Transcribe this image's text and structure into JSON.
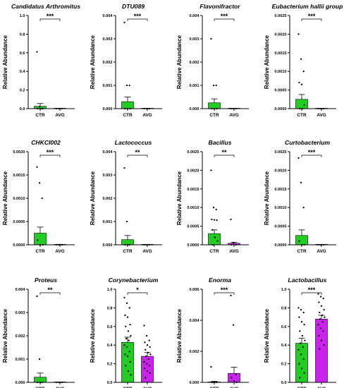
{
  "colors": {
    "ctr": "#22cc22",
    "avg": "#cc22ee",
    "axis": "#000000",
    "dot": "#000000"
  },
  "chart_data": [
    {
      "type": "bar",
      "title": "Candidatus Arthromitus",
      "ylabel": "Relative Abundance",
      "categories": [
        "CTR",
        "AVG"
      ],
      "ylim": [
        0,
        1.0
      ],
      "yticks": [
        "0.0",
        "0.2",
        "0.4",
        "0.6",
        "0.8",
        "1.0"
      ],
      "ytick_values": [
        0,
        0.2,
        0.4,
        0.6,
        0.8,
        1.0
      ],
      "means": [
        0.025,
        0.0
      ],
      "errors": [
        0.03,
        0.002
      ],
      "points": [
        [
          0.61,
          0.02,
          0.0,
          0.0,
          0.0,
          0.0
        ],
        [
          0.0,
          0.0,
          0.0
        ]
      ],
      "significance": "***"
    },
    {
      "type": "bar",
      "title": "DTU089",
      "ylabel": "Relative Abundance",
      "categories": [
        "CTR",
        "AVG"
      ],
      "ylim": [
        0,
        0.004
      ],
      "yticks": [
        "0.000",
        "0.001",
        "0.002",
        "0.003",
        "0.004"
      ],
      "ytick_values": [
        0,
        0.001,
        0.002,
        0.003,
        0.004
      ],
      "means": [
        0.0003,
        0.0
      ],
      "errors": [
        0.0002,
        1e-05
      ],
      "points": [
        [
          0.0037,
          0.001,
          0.001,
          0.0,
          0.0,
          0.0
        ],
        [
          0.0,
          0.0,
          0.0
        ]
      ],
      "significance": "***"
    },
    {
      "type": "bar",
      "title": "Flavonifractor",
      "ylabel": "Relative Abundance",
      "categories": [
        "CTR",
        "AVG"
      ],
      "ylim": [
        0,
        0.004
      ],
      "yticks": [
        "0.000",
        "0.001",
        "0.002",
        "0.003",
        "0.004"
      ],
      "ytick_values": [
        0,
        0.001,
        0.002,
        0.003,
        0.004
      ],
      "means": [
        0.00025,
        0.0
      ],
      "errors": [
        0.00017,
        1e-05
      ],
      "points": [
        [
          0.003,
          0.001,
          0.001,
          0.0,
          0.0,
          0.0
        ],
        [
          0.0,
          0.0,
          0.0
        ]
      ],
      "significance": "***"
    },
    {
      "type": "bar",
      "title": "Eubacterium hallii group",
      "ylabel": "Relative Abundance",
      "categories": [
        "CTR",
        "AVG"
      ],
      "ylim": [
        0,
        0.0025
      ],
      "yticks": [
        "0.0000",
        "0.0005",
        "0.0010",
        "0.0015",
        "0.0020",
        "0.0025"
      ],
      "ytick_values": [
        0,
        0.0005,
        0.001,
        0.0015,
        0.002,
        0.0025
      ],
      "means": [
        0.00025,
        0.0
      ],
      "errors": [
        0.00013,
        1e-05
      ],
      "points": [
        [
          0.002,
          0.00133,
          0.001,
          0.0007,
          0.00065,
          0.0001,
          0.0,
          0.0
        ],
        [
          0.0,
          0.0,
          0.0
        ]
      ],
      "significance": "***"
    },
    {
      "type": "bar",
      "title": "CHKCI002",
      "ylabel": "Relative Abundance",
      "categories": [
        "CTR",
        "AVG"
      ],
      "ylim": [
        0,
        0.002
      ],
      "yticks": [
        "0.0000",
        "0.0005",
        "0.0010",
        "0.0015",
        "0.0020"
      ],
      "ytick_values": [
        0,
        0.0005,
        0.001,
        0.0015,
        0.002
      ],
      "means": [
        0.00025,
        0.0
      ],
      "errors": [
        0.00013,
        1e-05
      ],
      "points": [
        [
          0.00167,
          0.00133,
          0.001,
          0.0001,
          0.0,
          0.0
        ],
        [
          0.0,
          0.0,
          0.0
        ]
      ],
      "significance": "***"
    },
    {
      "type": "bar",
      "title": "Lactococcus",
      "ylabel": "Relative Abundance",
      "categories": [
        "CTR",
        "AVG"
      ],
      "ylim": [
        0,
        0.004
      ],
      "yticks": [
        "0.000",
        "0.001",
        "0.002",
        "0.003",
        "0.004"
      ],
      "ytick_values": [
        0,
        0.001,
        0.002,
        0.003,
        0.004
      ],
      "means": [
        0.00022,
        0.0
      ],
      "errors": [
        0.00018,
        1e-05
      ],
      "points": [
        [
          0.0033,
          0.001,
          0.0,
          0.0,
          0.0
        ],
        [
          0.0,
          0.0,
          0.0
        ]
      ],
      "significance": "**"
    },
    {
      "type": "bar",
      "title": "Bacillus",
      "ylabel": "Relative Abundance",
      "categories": [
        "CTR",
        "AVG"
      ],
      "ylim": [
        0,
        0.0025
      ],
      "yticks": [
        "0.0000",
        "0.0005",
        "0.0010",
        "0.0015",
        "0.0020",
        "0.0025"
      ],
      "ytick_values": [
        0,
        0.0005,
        0.001,
        0.0015,
        0.002,
        0.0025
      ],
      "means": [
        0.0003,
        4e-05
      ],
      "errors": [
        0.0001,
        3e-05
      ],
      "points": [
        [
          0.002,
          0.001,
          0.00095,
          0.00068,
          0.00067,
          0.00066,
          0.0004,
          0.0002,
          0.0001,
          0.0
        ],
        [
          0.00068,
          5e-05,
          0.0,
          0.0
        ]
      ],
      "significance": "**"
    },
    {
      "type": "bar",
      "title": "Curtobacterium",
      "ylabel": "Relative Abundance",
      "categories": [
        "CTR",
        "AVG"
      ],
      "ylim": [
        0,
        0.0025
      ],
      "yticks": [
        "0.0000",
        "0.0005",
        "0.0010",
        "0.0015",
        "0.0020",
        "0.0025"
      ],
      "ytick_values": [
        0,
        0.0005,
        0.001,
        0.0015,
        0.002,
        0.0025
      ],
      "means": [
        0.00025,
        0.0
      ],
      "errors": [
        0.00015,
        1e-05
      ],
      "points": [
        [
          0.00233,
          0.00167,
          0.001,
          0.0001,
          0.0,
          0.0
        ],
        [
          0.0,
          0.0,
          0.0
        ]
      ],
      "significance": "***"
    },
    {
      "type": "bar",
      "title": "Proteus",
      "ylabel": "Relative Abundance",
      "categories": [
        "CTR",
        "AVG"
      ],
      "ylim": [
        0,
        0.004
      ],
      "yticks": [
        "0.000",
        "0.001",
        "0.002",
        "0.003",
        "0.004"
      ],
      "ytick_values": [
        0,
        0.001,
        0.002,
        0.003,
        0.004
      ],
      "means": [
        0.00022,
        0.0
      ],
      "errors": [
        0.00018,
        1e-05
      ],
      "points": [
        [
          0.0037,
          0.001,
          0.0,
          0.0,
          0.0
        ],
        [
          0.0,
          0.0,
          0.0
        ]
      ],
      "significance": "**"
    },
    {
      "type": "bar",
      "title": "Corynebacterium",
      "ylabel": "Relative Abundance",
      "categories": [
        "CTR",
        "AVG"
      ],
      "ylim": [
        0,
        1.0
      ],
      "yticks": [
        "0.0",
        "0.2",
        "0.4",
        "0.6",
        "0.8",
        "1.0"
      ],
      "ytick_values": [
        0,
        0.2,
        0.4,
        0.6,
        0.8,
        1.0
      ],
      "means": [
        0.43,
        0.28
      ],
      "errors": [
        0.055,
        0.04
      ],
      "points": [
        [
          0.91,
          0.85,
          0.8,
          0.72,
          0.7,
          0.62,
          0.6,
          0.55,
          0.5,
          0.47,
          0.45,
          0.4,
          0.38,
          0.33,
          0.3,
          0.28,
          0.22,
          0.18,
          0.12,
          0.08
        ],
        [
          0.61,
          0.5,
          0.45,
          0.43,
          0.4,
          0.38,
          0.35,
          0.32,
          0.3,
          0.28,
          0.25,
          0.22,
          0.2,
          0.18,
          0.15,
          0.12,
          0.1,
          0.05
        ]
      ],
      "significance": "*"
    },
    {
      "type": "bar",
      "title": "Enorma",
      "ylabel": "Relative Abundance",
      "categories": [
        "CTR",
        "AVG"
      ],
      "ylim": [
        0,
        0.006
      ],
      "yticks": [
        "0.000",
        "0.002",
        "0.004",
        "0.006"
      ],
      "ytick_values": [
        0,
        0.002,
        0.004,
        0.006
      ],
      "means": [
        2e-05,
        0.00058
      ],
      "errors": [
        5e-05,
        0.0004
      ],
      "points": [
        [
          0.001,
          0.0,
          0.0,
          0.0
        ],
        [
          0.0056,
          0.0037,
          0.0005,
          0.0003,
          0.0001,
          0.0
        ]
      ],
      "significance": "***"
    },
    {
      "type": "bar",
      "title": "Lactobacillus",
      "ylabel": "Relative Abundance",
      "categories": [
        "CTR",
        "AVG"
      ],
      "ylim": [
        0,
        1.0
      ],
      "yticks": [
        "0.0",
        "0.2",
        "0.4",
        "0.6",
        "0.8",
        "1.0"
      ],
      "ytick_values": [
        0,
        0.2,
        0.4,
        0.6,
        0.8,
        1.0
      ],
      "means": [
        0.42,
        0.68
      ],
      "errors": [
        0.055,
        0.04
      ],
      "points": [
        [
          0.8,
          0.78,
          0.75,
          0.7,
          0.65,
          0.62,
          0.55,
          0.5,
          0.45,
          0.42,
          0.38,
          0.35,
          0.3,
          0.25,
          0.2,
          0.15,
          0.1,
          0.05
        ],
        [
          0.95,
          0.92,
          0.9,
          0.86,
          0.82,
          0.78,
          0.75,
          0.72,
          0.7,
          0.68,
          0.65,
          0.62,
          0.58,
          0.55,
          0.5,
          0.45,
          0.4,
          0.36
        ]
      ],
      "significance": "***"
    }
  ]
}
